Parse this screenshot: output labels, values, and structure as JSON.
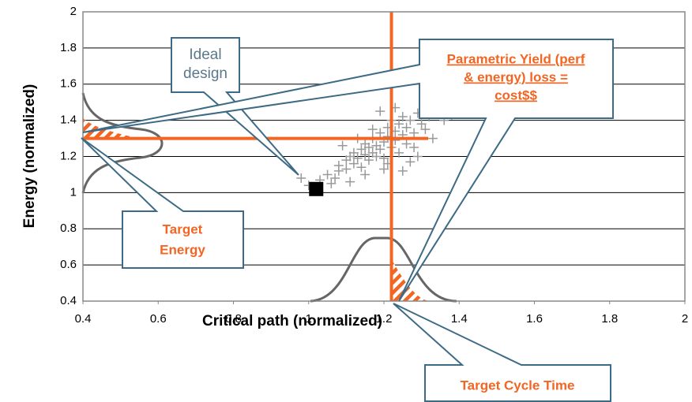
{
  "chart_data": {
    "type": "scatter",
    "xlabel": "Critical path (normalized)",
    "ylabel": "Energy (normalized)",
    "xlim": [
      0.4,
      2
    ],
    "ylim": [
      0.4,
      2
    ],
    "xticks": [
      0.4,
      0.6,
      0.8,
      1,
      1.2,
      1.4,
      1.6,
      1.8,
      2
    ],
    "yticks": [
      0.4,
      0.6,
      0.8,
      1,
      1.2,
      1.4,
      1.6,
      1.8,
      2
    ],
    "grid": true,
    "point_color": "#999999",
    "x": [
      1.0,
      1.03,
      1.05,
      1.06,
      1.08,
      1.08,
      1.1,
      1.1,
      1.11,
      1.12,
      1.12,
      1.13,
      1.14,
      1.14,
      1.15,
      1.15,
      1.16,
      1.16,
      1.17,
      1.17,
      1.18,
      1.18,
      1.19,
      1.19,
      1.2,
      1.2,
      1.21,
      1.21,
      1.22,
      1.22,
      1.23,
      1.23,
      1.24,
      1.24,
      1.25,
      1.25,
      1.26,
      1.26,
      1.27,
      1.28,
      1.29,
      1.3,
      1.31,
      1.32,
      1.34,
      1.36,
      1.38,
      1.4,
      1.09,
      1.13,
      1.17,
      1.21,
      1.25,
      1.29,
      1.07,
      1.15,
      1.19,
      1.23,
      1.27,
      1.33,
      0.98,
      1.02,
      1.11,
      1.2,
      1.28
    ],
    "values": [
      1.04,
      1.07,
      1.1,
      1.05,
      1.12,
      1.15,
      1.13,
      1.18,
      1.2,
      1.16,
      1.22,
      1.19,
      1.24,
      1.14,
      1.21,
      1.27,
      1.18,
      1.25,
      1.3,
      1.22,
      1.26,
      1.2,
      1.33,
      1.24,
      1.28,
      1.19,
      1.31,
      1.36,
      1.25,
      1.4,
      1.29,
      1.34,
      1.38,
      1.22,
      1.32,
      1.42,
      1.27,
      1.36,
      1.4,
      1.33,
      1.44,
      1.38,
      1.35,
      1.42,
      1.45,
      1.4,
      1.43,
      1.44,
      1.26,
      1.3,
      1.35,
      1.16,
      1.12,
      1.2,
      1.08,
      1.1,
      1.45,
      1.47,
      1.17,
      1.3,
      1.08,
      1.02,
      1.06,
      1.13,
      1.25
    ],
    "ideal_point": {
      "x": 1.02,
      "y": 1.02,
      "color": "#000000"
    },
    "target_lines": {
      "x": 1.22,
      "y": 1.3,
      "color": "#f26522"
    },
    "callouts": {
      "ideal": [
        "Ideal",
        "design"
      ],
      "yield_loss": [
        "Parametric Yield (perf",
        "& energy) loss =",
        "cost$$"
      ],
      "target_energy": [
        "Target",
        "Energy"
      ],
      "target_cycle_time": "Target Cycle Time"
    }
  }
}
